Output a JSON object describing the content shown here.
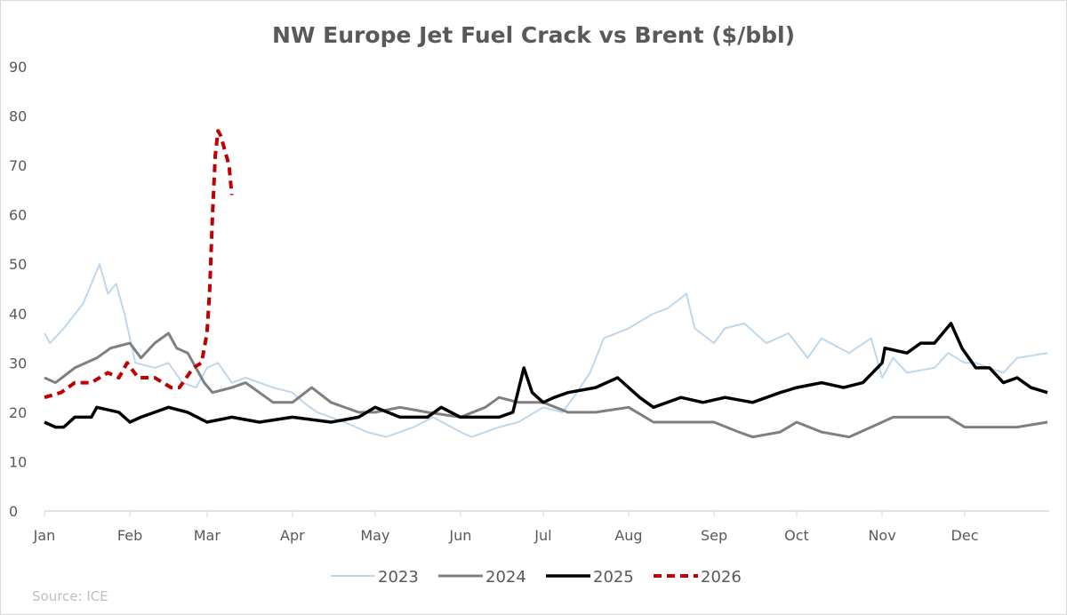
{
  "chart_data": {
    "type": "line",
    "title": "NW Europe Jet Fuel Crack vs Brent ($/bbl)",
    "xlabel": "",
    "ylabel": "",
    "ylim": [
      0,
      90
    ],
    "yticks": [
      "0",
      "10",
      "20",
      "30",
      "40",
      "50",
      "60",
      "70",
      "80",
      "90"
    ],
    "xticks": [
      "Jan",
      "Feb",
      "Mar",
      "Apr",
      "May",
      "Jun",
      "Jul",
      "Aug",
      "Sep",
      "Oct",
      "Nov",
      "Dec"
    ],
    "grid": false,
    "legend_position": "bottom",
    "source": "Source: ICE",
    "series": [
      {
        "name": "2023",
        "color": "#bdd7ee",
        "style": "solid",
        "x": [
          "01-01",
          "01-03",
          "01-08",
          "01-15",
          "01-21",
          "01-24",
          "01-27",
          "01-30",
          "02-03",
          "02-10",
          "02-15",
          "02-20",
          "02-25",
          "03-01",
          "03-05",
          "03-10",
          "03-15",
          "03-25",
          "04-01",
          "04-05",
          "04-10",
          "04-20",
          "04-28",
          "05-05",
          "05-15",
          "05-22",
          "06-01",
          "06-05",
          "06-15",
          "06-22",
          "07-01",
          "07-08",
          "07-12",
          "07-18",
          "07-23",
          "08-01",
          "08-10",
          "08-15",
          "08-22",
          "08-25",
          "09-01",
          "09-05",
          "09-12",
          "09-20",
          "09-28",
          "10-05",
          "10-10",
          "10-20",
          "10-28",
          "11-01",
          "11-05",
          "11-10",
          "11-20",
          "11-25",
          "12-01",
          "12-05",
          "12-10",
          "12-15",
          "12-20",
          "12-31"
        ],
        "y": [
          36,
          34,
          37,
          42,
          50,
          44,
          46,
          40,
          30,
          29,
          30,
          26,
          25,
          29,
          30,
          26,
          27,
          25,
          24,
          22,
          20,
          18,
          16,
          15,
          17,
          19,
          16,
          15,
          17,
          18,
          21,
          20,
          23,
          28,
          35,
          37,
          40,
          41,
          44,
          37,
          34,
          37,
          38,
          34,
          36,
          31,
          35,
          32,
          35,
          27,
          31,
          28,
          29,
          32,
          30,
          30,
          29,
          28,
          31,
          32
        ]
      },
      {
        "name": "2024",
        "color": "#7f7f7f",
        "style": "solid",
        "x": [
          "01-01",
          "01-05",
          "01-12",
          "01-20",
          "01-25",
          "02-01",
          "02-05",
          "02-10",
          "02-15",
          "02-18",
          "02-22",
          "02-28",
          "03-03",
          "03-10",
          "03-15",
          "03-20",
          "03-25",
          "04-01",
          "04-08",
          "04-15",
          "04-25",
          "05-01",
          "05-10",
          "05-20",
          "06-01",
          "06-10",
          "06-15",
          "06-22",
          "07-01",
          "07-10",
          "07-20",
          "08-01",
          "08-10",
          "08-20",
          "09-01",
          "09-10",
          "09-15",
          "09-25",
          "10-01",
          "10-10",
          "10-20",
          "10-28",
          "11-05",
          "11-15",
          "11-25",
          "12-01",
          "12-10",
          "12-20",
          "12-31"
        ],
        "y": [
          27,
          26,
          29,
          31,
          33,
          34,
          31,
          34,
          36,
          33,
          32,
          26,
          24,
          25,
          26,
          24,
          22,
          22,
          25,
          22,
          20,
          20,
          21,
          20,
          19,
          21,
          23,
          22,
          22,
          20,
          20,
          21,
          18,
          18,
          18,
          16,
          15,
          16,
          18,
          16,
          15,
          17,
          19,
          19,
          19,
          17,
          17,
          17,
          18
        ]
      },
      {
        "name": "2025",
        "color": "#000000",
        "style": "solid",
        "x": [
          "01-01",
          "01-05",
          "01-08",
          "01-12",
          "01-18",
          "01-20",
          "01-28",
          "02-01",
          "02-05",
          "02-10",
          "02-15",
          "02-22",
          "03-01",
          "03-10",
          "03-20",
          "04-01",
          "04-15",
          "04-25",
          "05-01",
          "05-10",
          "05-20",
          "05-25",
          "06-01",
          "06-15",
          "06-20",
          "06-24",
          "06-27",
          "07-01",
          "07-05",
          "07-10",
          "07-20",
          "07-28",
          "08-05",
          "08-10",
          "08-20",
          "08-28",
          "09-05",
          "09-15",
          "09-25",
          "10-01",
          "10-10",
          "10-18",
          "10-25",
          "11-01",
          "11-02",
          "11-10",
          "11-15",
          "11-20",
          "11-26",
          "11-30",
          "12-05",
          "12-10",
          "12-15",
          "12-20",
          "12-25",
          "12-31"
        ],
        "y": [
          18,
          17,
          17,
          19,
          19,
          21,
          20,
          18,
          19,
          20,
          21,
          20,
          18,
          19,
          18,
          19,
          18,
          19,
          21,
          19,
          19,
          21,
          19,
          19,
          20,
          29,
          24,
          22,
          23,
          24,
          25,
          27,
          23,
          21,
          23,
          22,
          23,
          22,
          24,
          25,
          26,
          25,
          26,
          30,
          33,
          32,
          34,
          34,
          38,
          33,
          29,
          29,
          26,
          27,
          25,
          24
        ]
      },
      {
        "name": "2026",
        "color": "#c00000",
        "style": "dashed",
        "x": [
          "01-01",
          "01-07",
          "01-12",
          "01-18",
          "01-24",
          "01-28",
          "01-31",
          "02-04",
          "02-10",
          "02-16",
          "02-19",
          "02-24",
          "02-27",
          "03-01",
          "03-02",
          "03-03",
          "03-04",
          "03-05",
          "03-06",
          "03-09",
          "03-10"
        ],
        "y": [
          23,
          24,
          26,
          26,
          28,
          27,
          30,
          27,
          27,
          25,
          25,
          29,
          30,
          36,
          45,
          60,
          72,
          77,
          76,
          70,
          64
        ]
      }
    ]
  }
}
